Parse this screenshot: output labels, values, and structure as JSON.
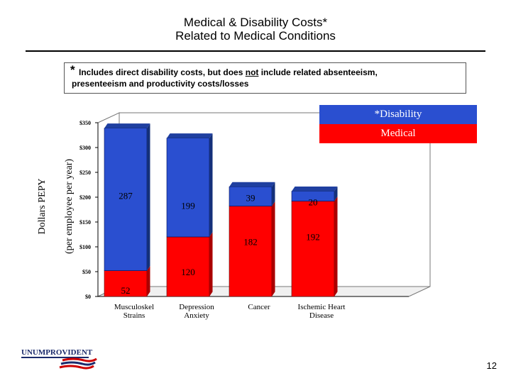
{
  "title_line1": "Medical & Disability Costs*",
  "title_line2": "Related to Medical Conditions",
  "note_star": "*",
  "note_line1_a": "Includes direct disability costs, but does ",
  "note_line1_b": "not",
  "note_line1_c": " include related absenteeism,",
  "note_line2": "presenteeism and productivity costs/losses",
  "logo_text": "UNUMPROVIDENT",
  "page_number": "12",
  "colors": {
    "disability": "#2a4fd0",
    "medical": "#ff0000"
  },
  "chart_data": {
    "type": "bar",
    "stacked": true,
    "categories": [
      [
        "Musculoskel",
        "Strains"
      ],
      [
        "Depression",
        "Anxiety"
      ],
      [
        "Cancer"
      ],
      [
        "Ischemic Heart",
        "Disease"
      ]
    ],
    "series": [
      {
        "name": "Medical",
        "values": [
          52,
          120,
          182,
          192
        ]
      },
      {
        "name": "*Disability",
        "values": [
          287,
          199,
          39,
          20
        ]
      }
    ],
    "ylabel_line1": "Dollars PEPY",
    "ylabel_line2": "(per employee per year)",
    "yticks": [
      "$0",
      "$50",
      "$100",
      "$150",
      "$200",
      "$250",
      "$300",
      "$350"
    ],
    "ylim": [
      0,
      350
    ],
    "legend_position": "top-right"
  }
}
